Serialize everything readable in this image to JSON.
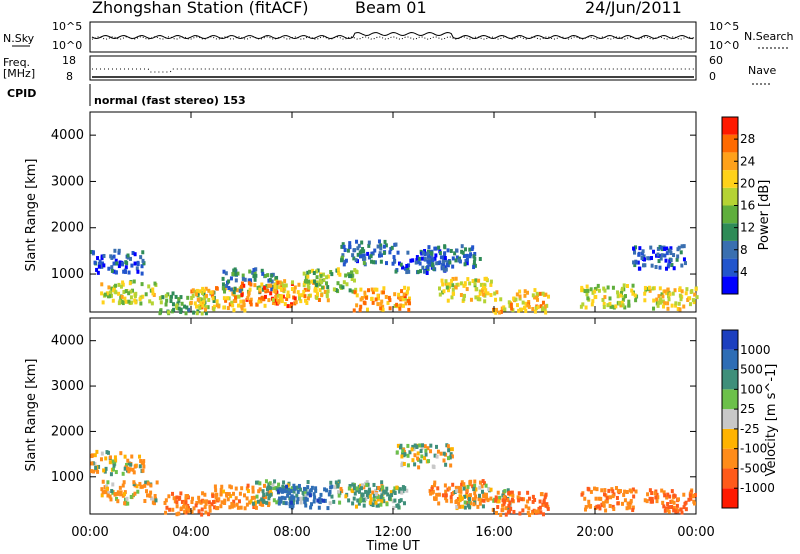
{
  "header": {
    "station": "Zhongshan Station (fitACF)",
    "beam": "Beam 01",
    "date": "24/Jun/2011"
  },
  "top_panel": {
    "left_label": "N.Sky",
    "right_label": "N.Search",
    "left_ticks": [
      "10^5",
      "10^0"
    ],
    "right_ticks": [
      "10^5",
      "10^0"
    ]
  },
  "freq_panel": {
    "left_label_1": "Freq.",
    "left_label_2": "[MHz]",
    "right_label": "Nave",
    "left_ticks": [
      "18",
      "8"
    ],
    "right_ticks": [
      "60",
      "0"
    ]
  },
  "cpid": {
    "label": "CPID",
    "text": "normal (fast stereo) 153"
  },
  "axes": {
    "ylabel": "Slant Range [km]",
    "xlabel": "Time UT",
    "x_ticks": [
      "00:00",
      "04:00",
      "08:00",
      "12:00",
      "16:00",
      "20:00",
      "00:00"
    ],
    "y_ticks": [
      "1000",
      "2000",
      "3000",
      "4000"
    ]
  },
  "chart_data": [
    {
      "type": "heatmap",
      "title": "",
      "xlabel": "",
      "ylabel": "Slant Range [km]",
      "xlim": [
        0,
        24
      ],
      "ylim": [
        180,
        4500
      ],
      "colorbar": {
        "label": "Power [dB]",
        "ticks": [
          "4",
          "8",
          "12",
          "16",
          "20",
          "24",
          "28"
        ],
        "colors": [
          "#0000ff",
          "#2255cc",
          "#3a6fb0",
          "#2e8b57",
          "#5fae3c",
          "#b5d334",
          "#ffd21a",
          "#ffa11a",
          "#ff6a00",
          "#ff1a00"
        ]
      },
      "blobs": [
        {
          "t": 1.0,
          "r": 1300,
          "val": 6
        },
        {
          "t": 1.5,
          "r": 650,
          "val": 18
        },
        {
          "t": 3.8,
          "r": 400,
          "val": 14
        },
        {
          "t": 5.0,
          "r": 500,
          "val": 22
        },
        {
          "t": 6.3,
          "r": 900,
          "val": 10
        },
        {
          "t": 7.0,
          "r": 600,
          "val": 26
        },
        {
          "t": 8.3,
          "r": 650,
          "val": 22
        },
        {
          "t": 9.5,
          "r": 900,
          "val": 16
        },
        {
          "t": 11.0,
          "r": 1500,
          "val": 8
        },
        {
          "t": 11.5,
          "r": 500,
          "val": 24
        },
        {
          "t": 13.0,
          "r": 1300,
          "val": 6
        },
        {
          "t": 14.3,
          "r": 1400,
          "val": 8
        },
        {
          "t": 14.8,
          "r": 700,
          "val": 20
        },
        {
          "t": 17.0,
          "r": 450,
          "val": 22
        },
        {
          "t": 20.5,
          "r": 550,
          "val": 18
        },
        {
          "t": 22.5,
          "r": 1400,
          "val": 6
        },
        {
          "t": 23.0,
          "r": 500,
          "val": 20
        }
      ]
    },
    {
      "type": "heatmap",
      "title": "",
      "xlabel": "Time UT",
      "ylabel": "Slant Range [km]",
      "xlim": [
        0,
        24
      ],
      "ylim": [
        180,
        4500
      ],
      "colorbar": {
        "label": "Velocity [m s^-1]",
        "ticks": [
          "1000",
          "500",
          "100",
          "25",
          "-25",
          "-100",
          "-500",
          "-1000"
        ],
        "colors": [
          "#1c3fbf",
          "#2e6db5",
          "#3f8f7a",
          "#6cc04a",
          "#c8c8c8",
          "#ffb300",
          "#ff8c1a",
          "#ff5a1a",
          "#ff1a00"
        ]
      },
      "blobs": [
        {
          "t": 1.0,
          "r": 1350,
          "val": -25
        },
        {
          "t": 1.5,
          "r": 700,
          "val": -100
        },
        {
          "t": 4.0,
          "r": 450,
          "val": -500
        },
        {
          "t": 6.0,
          "r": 600,
          "val": -300
        },
        {
          "t": 7.5,
          "r": 700,
          "val": 200
        },
        {
          "t": 8.5,
          "r": 600,
          "val": 800
        },
        {
          "t": 10.5,
          "r": 700,
          "val": 100
        },
        {
          "t": 11.5,
          "r": 600,
          "val": 200
        },
        {
          "t": 13.2,
          "r": 1500,
          "val": 0
        },
        {
          "t": 14.5,
          "r": 700,
          "val": -400
        },
        {
          "t": 15.5,
          "r": 600,
          "val": 0
        },
        {
          "t": 17.0,
          "r": 450,
          "val": -500
        },
        {
          "t": 20.5,
          "r": 550,
          "val": -400
        },
        {
          "t": 23.0,
          "r": 500,
          "val": -500
        }
      ]
    }
  ]
}
